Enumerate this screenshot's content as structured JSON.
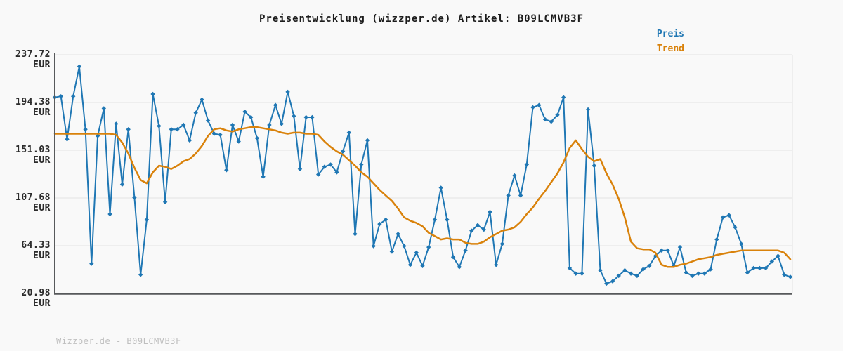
{
  "header": {
    "title": "Preisentwicklung (wizzper.de) Artikel: B09LCMVB3F"
  },
  "legend": {
    "preis_label": "Preis",
    "trend_label": "Trend"
  },
  "footer": {
    "text": "Wizzper.de - B09LCMVB3F"
  },
  "colors": {
    "price_line": "#1f77b4",
    "trend_line": "#d9820b",
    "axis": "#57595b",
    "grid": "#e4e4e4",
    "background": "#f9f9f9",
    "tick_text": "#2b2b2b",
    "footer_text": "#bfbfbf"
  },
  "chart_data": {
    "type": "line",
    "title": "Preisentwicklung (wizzper.de) Artikel: B09LCMVB3F",
    "xlabel": "",
    "ylabel": "EUR",
    "ylim": [
      20.98,
      237.72
    ],
    "grid": "horizontal",
    "legend_position": "top-right",
    "yticks": [
      {
        "label": "237.72 EUR",
        "value": 237.72
      },
      {
        "label": "194.38 EUR",
        "value": 194.38
      },
      {
        "label": "151.03 EUR",
        "value": 151.03
      },
      {
        "label": "107.68 EUR",
        "value": 107.68
      },
      {
        "label": "64.33 EUR",
        "value": 64.33
      },
      {
        "label": "20.98 EUR",
        "value": 20.98
      }
    ],
    "series": [
      {
        "name": "Preis",
        "color": "#1f77b4",
        "marker": "diamond",
        "values": [
          199,
          200,
          161,
          200,
          227,
          170,
          48,
          164,
          189,
          93,
          175,
          120,
          170,
          108,
          38,
          88,
          202,
          173,
          104,
          170,
          170,
          174,
          160,
          185,
          197,
          178,
          166,
          165,
          133,
          174,
          159,
          186,
          181,
          162,
          127,
          174,
          192,
          175,
          204,
          182,
          134,
          181,
          181,
          129,
          136,
          138,
          131,
          150,
          167,
          75,
          138,
          160,
          64,
          84,
          88,
          59,
          75,
          64,
          47,
          58,
          46,
          63,
          88,
          117,
          88,
          54,
          45,
          60,
          78,
          83,
          79,
          95,
          47,
          66,
          110,
          128,
          110,
          138,
          190,
          192,
          179,
          177,
          183,
          199,
          44,
          39,
          39,
          188,
          137,
          42,
          30,
          32,
          37,
          42,
          39,
          37,
          43,
          46,
          55,
          60,
          60,
          46,
          63,
          40,
          37,
          39,
          39,
          43,
          70,
          90,
          92,
          81,
          66,
          40,
          44,
          44,
          44,
          50,
          55,
          38,
          36
        ]
      },
      {
        "name": "Trend",
        "color": "#d9820b",
        "marker": "none",
        "values": [
          166,
          166,
          166,
          166,
          166,
          166,
          166,
          166,
          166,
          166,
          165,
          158,
          148,
          135,
          124,
          121,
          131,
          137,
          136,
          134,
          137,
          141,
          143,
          148,
          155,
          164,
          170,
          171,
          169,
          168,
          170,
          171,
          172,
          172,
          171,
          170,
          169,
          167,
          166,
          167,
          167,
          166,
          166,
          165,
          159,
          154,
          150,
          147,
          142,
          137,
          131,
          127,
          121,
          115,
          110,
          105,
          98,
          90,
          87,
          85,
          82,
          76,
          73,
          70,
          71,
          70,
          70,
          67,
          66,
          66,
          68,
          72,
          75,
          78,
          79,
          81,
          86,
          93,
          99,
          107,
          114,
          122,
          130,
          140,
          153,
          160,
          152,
          145,
          141,
          143,
          130,
          120,
          107,
          90,
          68,
          62,
          61,
          61,
          58,
          47,
          45,
          45,
          47,
          48,
          50,
          52,
          53,
          54,
          56,
          57,
          58,
          59,
          60,
          60,
          60,
          60,
          60,
          60,
          60,
          58,
          52
        ]
      }
    ]
  }
}
